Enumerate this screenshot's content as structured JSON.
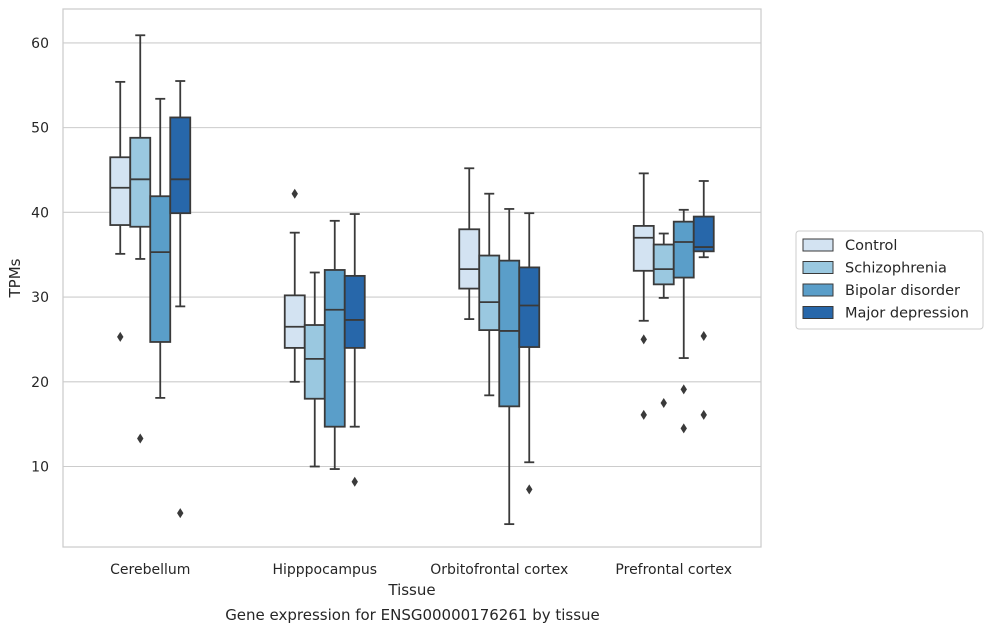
{
  "caption": "Gene expression for ENSG00000176261 by tissue",
  "chart_data": {
    "type": "box",
    "xlabel": "Tissue",
    "ylabel": "TPMs",
    "ylim": [
      0.5,
      64
    ],
    "yticks": [
      10,
      20,
      30,
      40,
      50,
      60
    ],
    "grid": "horizontal",
    "legend_position": "right",
    "categories": [
      "Cerebellum",
      "Hipppocampus",
      "Orbitofrontal cortex",
      "Prefrontal cortex"
    ],
    "series": [
      {
        "name": "Control",
        "color": "#d3e3f2",
        "boxes": [
          {
            "whisker_low": 35.1,
            "q1": 38.5,
            "median": 42.9,
            "q3": 46.5,
            "whisker_high": 55.4,
            "outliers": [
              25.3
            ]
          },
          {
            "whisker_low": 20.0,
            "q1": 24.0,
            "median": 26.5,
            "q3": 30.2,
            "whisker_high": 37.6,
            "outliers": [
              42.2
            ]
          },
          {
            "whisker_low": 27.4,
            "q1": 31.0,
            "median": 33.3,
            "q3": 38.0,
            "whisker_high": 45.2,
            "outliers": []
          },
          {
            "whisker_low": 27.2,
            "q1": 33.1,
            "median": 37.0,
            "q3": 38.4,
            "whisker_high": 44.6,
            "outliers": [
              25.0,
              16.1
            ]
          }
        ]
      },
      {
        "name": "Schizophrenia",
        "color": "#9ac8e0",
        "boxes": [
          {
            "whisker_low": 34.5,
            "q1": 38.3,
            "median": 43.9,
            "q3": 48.8,
            "whisker_high": 60.9,
            "outliers": [
              13.3
            ]
          },
          {
            "whisker_low": 10.0,
            "q1": 18.0,
            "median": 22.7,
            "q3": 26.7,
            "whisker_high": 32.9,
            "outliers": []
          },
          {
            "whisker_low": 18.4,
            "q1": 26.1,
            "median": 29.4,
            "q3": 34.9,
            "whisker_high": 42.2,
            "outliers": []
          },
          {
            "whisker_low": 29.9,
            "q1": 31.5,
            "median": 33.3,
            "q3": 36.2,
            "whisker_high": 37.5,
            "outliers": [
              17.5
            ]
          }
        ]
      },
      {
        "name": "Bipolar disorder",
        "color": "#5a9ec9",
        "boxes": [
          {
            "whisker_low": 18.1,
            "q1": 24.7,
            "median": 35.3,
            "q3": 41.9,
            "whisker_high": 53.4,
            "outliers": []
          },
          {
            "whisker_low": 9.7,
            "q1": 14.7,
            "median": 28.5,
            "q3": 33.2,
            "whisker_high": 39.0,
            "outliers": []
          },
          {
            "whisker_low": 3.2,
            "q1": 17.1,
            "median": 26.0,
            "q3": 34.3,
            "whisker_high": 40.4,
            "outliers": []
          },
          {
            "whisker_low": 22.8,
            "q1": 32.3,
            "median": 36.5,
            "q3": 38.9,
            "whisker_high": 40.3,
            "outliers": [
              19.1,
              14.5
            ]
          }
        ]
      },
      {
        "name": "Major depression",
        "color": "#2767aa",
        "boxes": [
          {
            "whisker_low": 28.9,
            "q1": 39.9,
            "median": 43.9,
            "q3": 51.2,
            "whisker_high": 55.5,
            "outliers": [
              4.5
            ]
          },
          {
            "whisker_low": 14.7,
            "q1": 24.0,
            "median": 27.3,
            "q3": 32.5,
            "whisker_high": 39.8,
            "outliers": [
              8.2
            ]
          },
          {
            "whisker_low": 10.5,
            "q1": 24.1,
            "median": 29.0,
            "q3": 33.5,
            "whisker_high": 39.9,
            "outliers": [
              7.3
            ]
          },
          {
            "whisker_low": 34.7,
            "q1": 35.4,
            "median": 35.9,
            "q3": 39.5,
            "whisker_high": 43.7,
            "outliers": [
              25.4,
              16.1
            ]
          }
        ]
      }
    ]
  }
}
